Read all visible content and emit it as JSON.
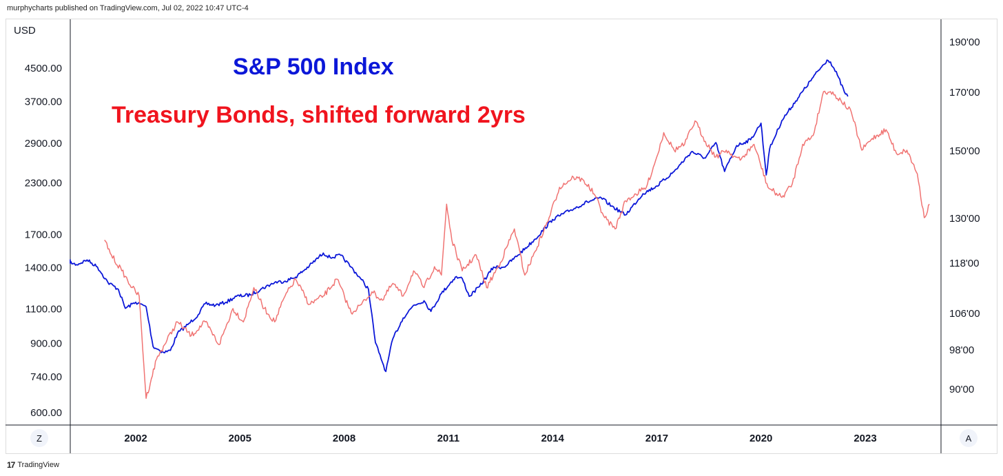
{
  "header": {
    "published_text": "murphycharts published on TradingView.com, Jul 02, 2022 10:47 UTC-4"
  },
  "footer": {
    "brand_mark": "17",
    "brand_label": "TradingView"
  },
  "axis_controls": {
    "left_button": "Z",
    "right_button": "A"
  },
  "colors": {
    "sp500": "#0b17d8",
    "bonds": "#f07372",
    "title_red": "#f0141e",
    "axis_line": "#131722",
    "grid": "#ffffff"
  },
  "chart_data": {
    "type": "line",
    "currency_label": "USD",
    "annotations": [
      "S&P 500 Index",
      "Treasury Bonds, shifted forward 2yrs"
    ],
    "x_ticks": [
      "2002",
      "2005",
      "2008",
      "2011",
      "2014",
      "2017",
      "2020",
      "2023"
    ],
    "y_left": {
      "scale": "log",
      "range": [
        560,
        5800
      ],
      "ticks": [
        "4500.00",
        "3700.00",
        "2900.00",
        "2300.00",
        "1700.00",
        "1400.00",
        "1100.00",
        "900.00",
        "740.00",
        "600.00"
      ]
    },
    "y_right": {
      "range": [
        82,
        196
      ],
      "ticks": [
        "190'00",
        "170'00",
        "150'00",
        "130'00",
        "118'00",
        "106'00",
        "98'00",
        "90'00"
      ]
    },
    "series": [
      {
        "name": "S&P 500 Index",
        "axis": "left",
        "x": [
          2000.0,
          2000.3,
          2000.6,
          2000.9,
          2001.2,
          2001.5,
          2001.7,
          2002.0,
          2002.3,
          2002.5,
          2002.8,
          2003.0,
          2003.2,
          2003.5,
          2003.8,
          2004.0,
          2004.3,
          2004.6,
          2004.9,
          2005.3,
          2005.6,
          2006.0,
          2006.3,
          2006.6,
          2007.0,
          2007.4,
          2007.6,
          2007.9,
          2008.2,
          2008.5,
          2008.7,
          2008.9,
          2009.0,
          2009.2,
          2009.4,
          2009.7,
          2010.0,
          2010.3,
          2010.5,
          2010.8,
          2011.2,
          2011.4,
          2011.6,
          2011.9,
          2012.3,
          2012.6,
          2013.0,
          2013.5,
          2014.0,
          2014.5,
          2015.0,
          2015.4,
          2015.7,
          2016.1,
          2016.6,
          2017.0,
          2017.5,
          2018.0,
          2018.4,
          2018.7,
          2018.95,
          2019.3,
          2019.7,
          2020.0,
          2020.15,
          2020.25,
          2020.6,
          2021.0,
          2021.5,
          2021.9,
          2022.0,
          2022.2,
          2022.4,
          2022.5
        ],
        "y": [
          1450,
          1420,
          1460,
          1400,
          1280,
          1230,
          1100,
          1140,
          1110,
          880,
          850,
          860,
          950,
          1000,
          1060,
          1130,
          1120,
          1140,
          1180,
          1190,
          1230,
          1280,
          1290,
          1320,
          1410,
          1520,
          1480,
          1500,
          1400,
          1300,
          1230,
          900,
          850,
          760,
          920,
          1040,
          1120,
          1150,
          1080,
          1200,
          1320,
          1310,
          1180,
          1250,
          1400,
          1400,
          1500,
          1650,
          1850,
          1950,
          2050,
          2100,
          2000,
          1900,
          2150,
          2250,
          2450,
          2750,
          2650,
          2900,
          2450,
          2850,
          2950,
          3250,
          2400,
          2800,
          3300,
          3700,
          4250,
          4700,
          4650,
          4300,
          3900,
          3800
        ]
      },
      {
        "name": "Treasury Bonds, shifted forward 2yrs",
        "axis": "right",
        "x": [
          2001.1,
          2001.3,
          2001.6,
          2001.9,
          2002.1,
          2002.3,
          2002.45,
          2002.6,
          2002.9,
          2003.2,
          2003.6,
          2004.0,
          2004.4,
          2004.8,
          2005.1,
          2005.4,
          2005.7,
          2006.0,
          2006.3,
          2006.6,
          2007.0,
          2007.4,
          2007.8,
          2008.2,
          2008.5,
          2008.8,
          2009.1,
          2009.4,
          2009.7,
          2010.0,
          2010.3,
          2010.6,
          2010.8,
          2010.95,
          2011.1,
          2011.4,
          2011.8,
          2012.1,
          2012.5,
          2012.9,
          2013.2,
          2013.5,
          2013.9,
          2014.2,
          2014.6,
          2014.9,
          2015.2,
          2015.5,
          2015.8,
          2016.1,
          2016.4,
          2016.7,
          2017.0,
          2017.2,
          2017.5,
          2017.8,
          2018.1,
          2018.4,
          2018.7,
          2019.0,
          2019.4,
          2019.8,
          2020.2,
          2020.6,
          2020.9,
          2021.2,
          2021.5,
          2021.8,
          2022.0,
          2022.3,
          2022.6,
          2022.9,
          2023.2,
          2023.6,
          2023.9,
          2024.2,
          2024.5,
          2024.7,
          2024.85
        ],
        "y": [
          124,
          120,
          116,
          112,
          110,
          88,
          92,
          96,
          100,
          104,
          101,
          104,
          99,
          107,
          104,
          112,
          107,
          104,
          110,
          114,
          108,
          110,
          114,
          106,
          108,
          111,
          109,
          113,
          110,
          116,
          112,
          117,
          115,
          134,
          124,
          116,
          120,
          112,
          118,
          127,
          115,
          121,
          130,
          139,
          142,
          141,
          137,
          130,
          127,
          135,
          137,
          139,
          148,
          156,
          150,
          152,
          160,
          153,
          148,
          150,
          147,
          152,
          139,
          136,
          140,
          152,
          155,
          170,
          170,
          167,
          163,
          150,
          154,
          157,
          149,
          150,
          143,
          130,
          134
        ]
      }
    ]
  }
}
